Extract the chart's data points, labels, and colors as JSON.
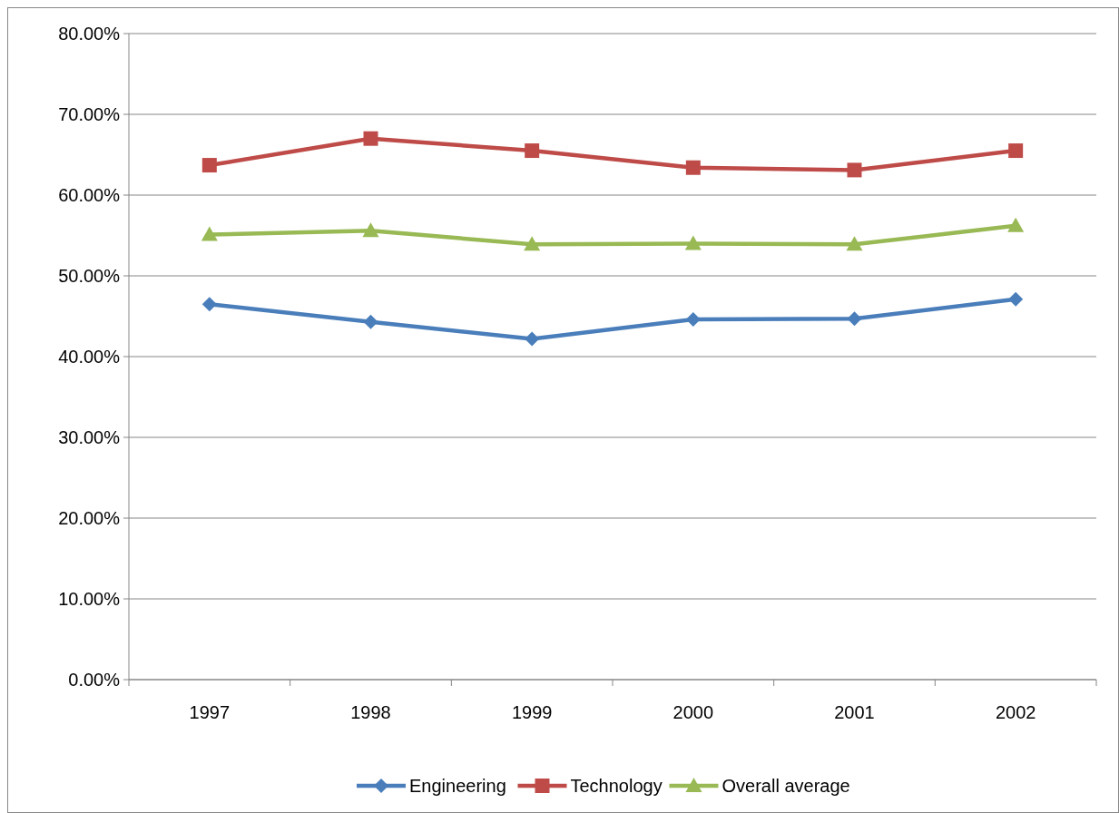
{
  "chart_data": {
    "type": "line",
    "categories": [
      "1997",
      "1998",
      "1999",
      "2000",
      "2001",
      "2002"
    ],
    "series": [
      {
        "name": "Engineering",
        "color": "#4a7ebb",
        "marker": "diamond",
        "values": [
          46.5,
          44.3,
          42.2,
          44.6,
          44.7,
          47.1
        ]
      },
      {
        "name": "Technology",
        "color": "#be4b48",
        "marker": "square",
        "values": [
          63.7,
          67.0,
          65.5,
          63.4,
          63.1,
          65.5
        ]
      },
      {
        "name": "Overall average",
        "color": "#98b954",
        "marker": "triangle",
        "values": [
          55.1,
          55.6,
          53.9,
          54.0,
          53.9,
          56.2
        ]
      }
    ],
    "ylim": [
      0,
      80
    ],
    "yticks": [
      {
        "value": 0,
        "label": "0.00%"
      },
      {
        "value": 10,
        "label": "10.00%"
      },
      {
        "value": 20,
        "label": "20.00%"
      },
      {
        "value": 30,
        "label": "30.00%"
      },
      {
        "value": 40,
        "label": "40.00%"
      },
      {
        "value": 50,
        "label": "50.00%"
      },
      {
        "value": 60,
        "label": "60.00%"
      },
      {
        "value": 70,
        "label": "70.00%"
      },
      {
        "value": 80,
        "label": "80.00%"
      }
    ],
    "grid": "y",
    "legend": "bottom",
    "line_style": "solid"
  }
}
